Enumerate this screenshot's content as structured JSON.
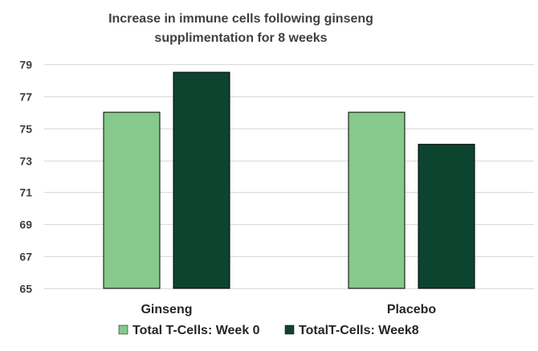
{
  "chart_data": {
    "type": "bar",
    "title_lines": [
      "Increase in immune cells following  ginseng",
      "supplimentation for 8 weeks"
    ],
    "categories": [
      "Ginseng",
      "Placebo"
    ],
    "series": [
      {
        "name": "Total T-Cells: Week 0",
        "values": [
          76,
          76
        ],
        "color": "#86c98a"
      },
      {
        "name": "TotalT-Cells: Week8",
        "values": [
          78.5,
          74
        ],
        "color": "#0d4430"
      }
    ],
    "ylim": [
      65,
      79
    ],
    "yticks": [
      65,
      67,
      69,
      71,
      73,
      75,
      77,
      79
    ],
    "grid": true,
    "legend_position": "bottom"
  }
}
